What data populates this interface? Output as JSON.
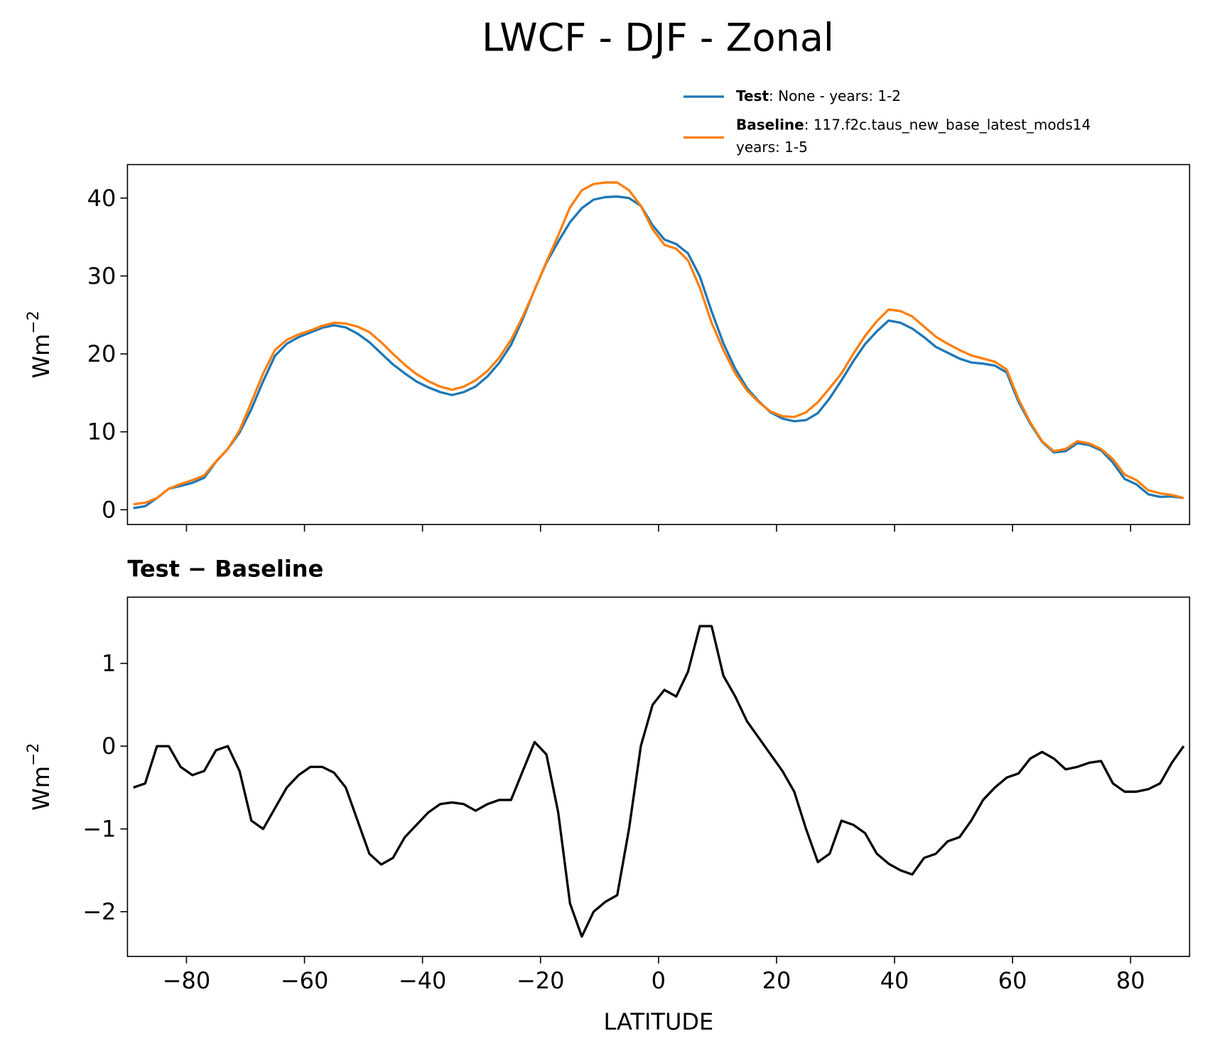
{
  "chart_data": [
    {
      "type": "line",
      "title": "LWCF - DJF - Zonal",
      "ylabel": "Wm",
      "ylabel_superscript": "−2",
      "x": [
        -89,
        -87,
        -85,
        -83,
        -81,
        -79,
        -77,
        -75,
        -73,
        -71,
        -69,
        -67,
        -65,
        -63,
        -61,
        -59,
        -57,
        -55,
        -53,
        -51,
        -49,
        -47,
        -45,
        -43,
        -41,
        -39,
        -37,
        -35,
        -33,
        -31,
        -29,
        -27,
        -25,
        -23,
        -21,
        -19,
        -17,
        -15,
        -13,
        -11,
        -9,
        -7,
        -5,
        -3,
        -1,
        1,
        3,
        5,
        7,
        9,
        11,
        13,
        15,
        17,
        19,
        21,
        23,
        25,
        27,
        29,
        31,
        33,
        35,
        37,
        39,
        41,
        43,
        45,
        47,
        49,
        51,
        53,
        55,
        57,
        59,
        61,
        63,
        65,
        67,
        69,
        71,
        73,
        75,
        77,
        79,
        81,
        83,
        85,
        87,
        89
      ],
      "series": [
        {
          "name": "Test",
          "description": ": None - years: 1-2",
          "color": "#1f77b4",
          "values": [
            0.2,
            0.45,
            1.5,
            2.7,
            3.05,
            3.45,
            4.1,
            6.15,
            7.8,
            9.9,
            12.9,
            16.5,
            19.75,
            21.3,
            22.15,
            22.75,
            23.35,
            23.68,
            23.4,
            22.6,
            21.5,
            20.07,
            18.65,
            17.5,
            16.45,
            15.7,
            15.1,
            14.72,
            15.1,
            15.82,
            17.1,
            18.85,
            21.15,
            24.5,
            28.25,
            31.7,
            34.4,
            36.9,
            38.7,
            39.8,
            40.12,
            40.2,
            40.0,
            39.0,
            36.5,
            34.68,
            34.1,
            32.9,
            29.95,
            25.45,
            21.35,
            18.1,
            15.6,
            13.9,
            12.5,
            11.7,
            11.35,
            11.5,
            12.4,
            14.3,
            16.6,
            19.05,
            21.25,
            22.9,
            24.28,
            24.0,
            23.25,
            22.15,
            20.9,
            20.15,
            19.4,
            18.9,
            18.75,
            18.5,
            17.62,
            13.87,
            11.05,
            8.73,
            7.35,
            7.52,
            8.55,
            8.3,
            7.62,
            6.05,
            3.95,
            3.25,
            1.98,
            1.65,
            1.7,
            1.5
          ]
        },
        {
          "name": "Baseline",
          "description": ": 117.f2c.taus_new_base_latest_mods14",
          "description_2": "years: 1-5",
          "color": "#ff7f0e",
          "values": [
            0.7,
            0.9,
            1.5,
            2.7,
            3.3,
            3.8,
            4.4,
            6.2,
            7.8,
            10.2,
            13.8,
            17.5,
            20.5,
            21.8,
            22.5,
            23.0,
            23.6,
            24.0,
            23.9,
            23.5,
            22.8,
            21.5,
            20.0,
            18.6,
            17.4,
            16.5,
            15.8,
            15.4,
            15.8,
            16.6,
            17.8,
            19.5,
            21.8,
            24.8,
            28.2,
            31.8,
            35.2,
            38.8,
            41.0,
            41.8,
            42.0,
            42.0,
            41.0,
            39.0,
            36.0,
            34.0,
            33.5,
            32.0,
            28.5,
            24.0,
            20.5,
            17.5,
            15.3,
            13.8,
            12.6,
            12.0,
            11.9,
            12.5,
            13.8,
            15.6,
            17.5,
            20.0,
            22.3,
            24.2,
            25.7,
            25.5,
            24.8,
            23.5,
            22.2,
            21.3,
            20.5,
            19.8,
            19.4,
            19.0,
            18.0,
            14.2,
            11.2,
            8.8,
            7.5,
            7.8,
            8.8,
            8.5,
            7.8,
            6.5,
            4.5,
            3.8,
            2.5,
            2.1,
            1.9,
            1.5
          ]
        }
      ],
      "xlim": [
        -90,
        90
      ],
      "xticks": [
        -80,
        -60,
        -40,
        -20,
        0,
        20,
        40,
        60,
        80
      ],
      "ylim": [
        -1.9,
        44.3
      ],
      "yticks": [
        0,
        10,
        20,
        30,
        40
      ]
    },
    {
      "type": "line",
      "title": "Test − Baseline",
      "xlabel": "LATITUDE",
      "ylabel": "Wm",
      "ylabel_superscript": "−2",
      "x": [
        -89,
        -87,
        -85,
        -83,
        -81,
        -79,
        -77,
        -75,
        -73,
        -71,
        -69,
        -67,
        -65,
        -63,
        -61,
        -59,
        -57,
        -55,
        -53,
        -51,
        -49,
        -47,
        -45,
        -43,
        -41,
        -39,
        -37,
        -35,
        -33,
        -31,
        -29,
        -27,
        -25,
        -23,
        -21,
        -19,
        -17,
        -15,
        -13,
        -11,
        -9,
        -7,
        -5,
        -3,
        -1,
        1,
        3,
        5,
        7,
        9,
        11,
        13,
        15,
        17,
        19,
        21,
        23,
        25,
        27,
        29,
        31,
        33,
        35,
        37,
        39,
        41,
        43,
        45,
        47,
        49,
        51,
        53,
        55,
        57,
        59,
        61,
        63,
        65,
        67,
        69,
        71,
        73,
        75,
        77,
        79,
        81,
        83,
        85,
        87,
        89
      ],
      "series": [
        {
          "color": "#000000",
          "values": [
            -0.5,
            -0.45,
            0.0,
            0.0,
            -0.25,
            -0.35,
            -0.3,
            -0.05,
            0.0,
            -0.3,
            -0.9,
            -1.0,
            -0.75,
            -0.5,
            -0.35,
            -0.25,
            -0.25,
            -0.32,
            -0.5,
            -0.9,
            -1.3,
            -1.43,
            -1.35,
            -1.1,
            -0.95,
            -0.8,
            -0.7,
            -0.68,
            -0.7,
            -0.78,
            -0.7,
            -0.65,
            -0.65,
            -0.3,
            0.05,
            -0.1,
            -0.8,
            -1.9,
            -2.3,
            -2.0,
            -1.88,
            -1.8,
            -1.0,
            0.0,
            0.5,
            0.68,
            0.6,
            0.9,
            1.45,
            1.45,
            0.85,
            0.6,
            0.3,
            0.1,
            -0.1,
            -0.3,
            -0.55,
            -1.0,
            -1.4,
            -1.3,
            -0.9,
            -0.95,
            -1.05,
            -1.3,
            -1.42,
            -1.5,
            -1.55,
            -1.35,
            -1.3,
            -1.15,
            -1.1,
            -0.9,
            -0.65,
            -0.5,
            -0.38,
            -0.33,
            -0.15,
            -0.07,
            -0.15,
            -0.28,
            -0.25,
            -0.2,
            -0.18,
            -0.45,
            -0.55,
            -0.55,
            -0.52,
            -0.45,
            -0.2,
            0.0
          ]
        }
      ],
      "xlim": [
        -90,
        90
      ],
      "xticks": [
        {
          "value": -80,
          "label": "−80"
        },
        {
          "value": -60,
          "label": "−60"
        },
        {
          "value": -40,
          "label": "−40"
        },
        {
          "value": -20,
          "label": "−20"
        },
        0,
        20,
        40,
        60,
        80
      ],
      "ylim": [
        -2.54,
        1.8
      ],
      "yticks": [
        {
          "value": -2,
          "label": "−2"
        },
        {
          "value": -1,
          "label": "−1"
        },
        0,
        1
      ]
    }
  ]
}
